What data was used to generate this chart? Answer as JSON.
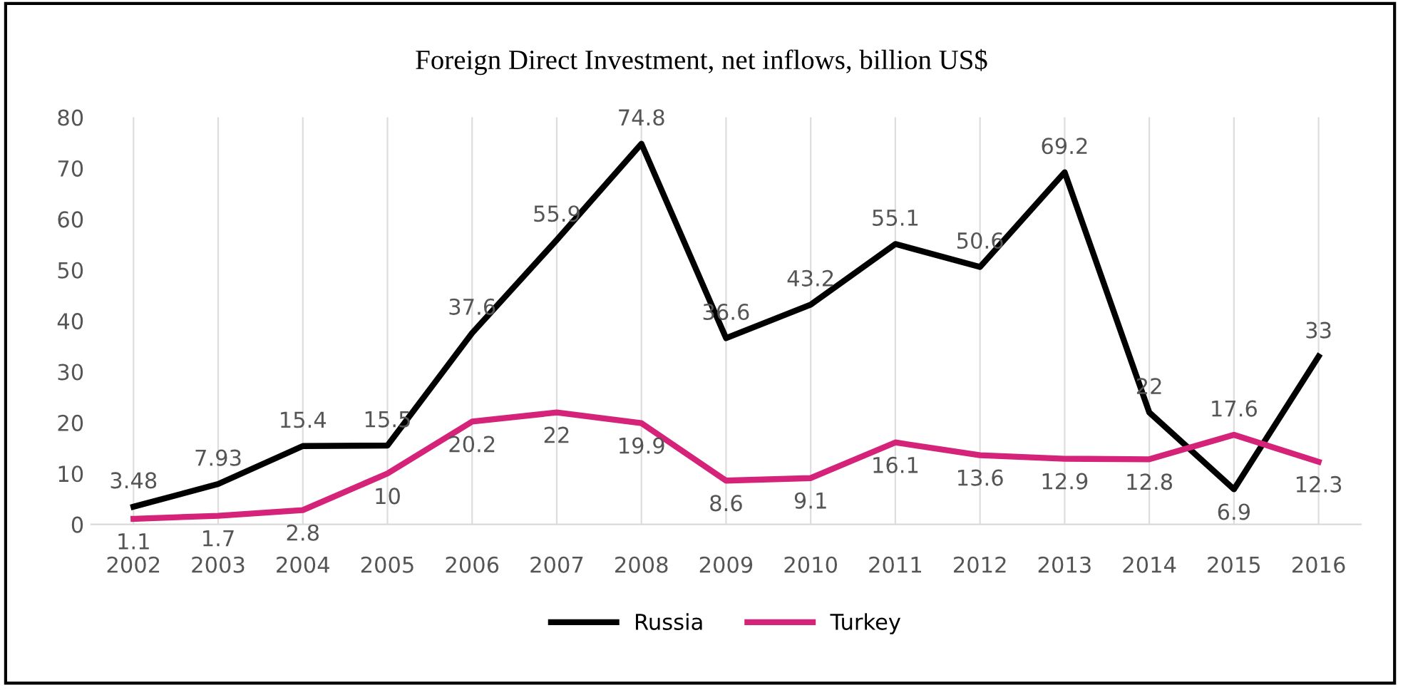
{
  "chart_data": {
    "type": "line",
    "title": "Foreign Direct Investment, net inflows, billion US$",
    "categories": [
      "2002",
      "2003",
      "2004",
      "2005",
      "2006",
      "2007",
      "2008",
      "2009",
      "2010",
      "2011",
      "2012",
      "2013",
      "2014",
      "2015",
      "2016"
    ],
    "series": [
      {
        "name": "Russia",
        "color": "#000000",
        "values": [
          3.48,
          7.93,
          15.4,
          15.5,
          37.6,
          55.9,
          74.8,
          36.6,
          43.2,
          55.1,
          50.6,
          69.2,
          22,
          6.9,
          33
        ]
      },
      {
        "name": "Turkey",
        "color": "#d6237a",
        "values": [
          1.1,
          1.7,
          2.8,
          10,
          20.2,
          22,
          19.9,
          8.6,
          9.1,
          16.1,
          13.6,
          12.9,
          12.8,
          17.6,
          12.3
        ]
      }
    ],
    "ylim": [
      0,
      80
    ],
    "yticks": [
      0,
      10,
      20,
      30,
      40,
      50,
      60,
      70,
      80
    ],
    "grid": "x",
    "legend": "bottom",
    "data_labels": true,
    "marker": "none",
    "line_style": "solid"
  }
}
